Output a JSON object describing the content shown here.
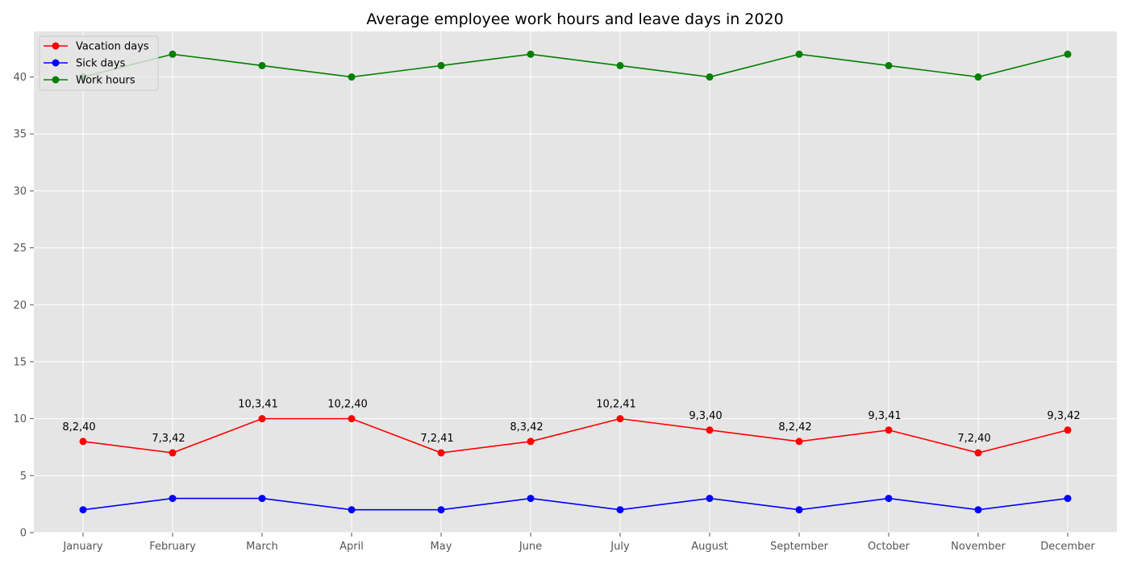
{
  "chart_data": {
    "type": "line",
    "title": "Average employee work hours and leave days in 2020",
    "xlabel": "",
    "ylabel": "",
    "categories": [
      "January",
      "February",
      "March",
      "April",
      "May",
      "June",
      "July",
      "August",
      "September",
      "October",
      "November",
      "December"
    ],
    "ylim": [
      0,
      44
    ],
    "yticks": [
      0,
      5,
      10,
      15,
      20,
      25,
      30,
      35,
      40
    ],
    "grid": true,
    "legend_position": "top-left",
    "series": [
      {
        "name": "Vacation days",
        "color": "#ff0000",
        "values": [
          8,
          7,
          10,
          10,
          7,
          8,
          10,
          9,
          8,
          9,
          7,
          9
        ]
      },
      {
        "name": "Sick days",
        "color": "#0000ff",
        "values": [
          2,
          3,
          3,
          2,
          2,
          3,
          2,
          3,
          2,
          3,
          2,
          3
        ]
      },
      {
        "name": "Work hours",
        "color": "#008000",
        "values": [
          40,
          42,
          41,
          40,
          41,
          42,
          41,
          40,
          42,
          41,
          40,
          42
        ]
      }
    ],
    "annotations": [
      "8,2,40",
      "7,3,42",
      "10,3,41",
      "10,2,40",
      "7,2,41",
      "8,3,42",
      "10,2,41",
      "9,3,40",
      "8,2,42",
      "9,3,41",
      "7,2,40",
      "9,3,42"
    ]
  }
}
